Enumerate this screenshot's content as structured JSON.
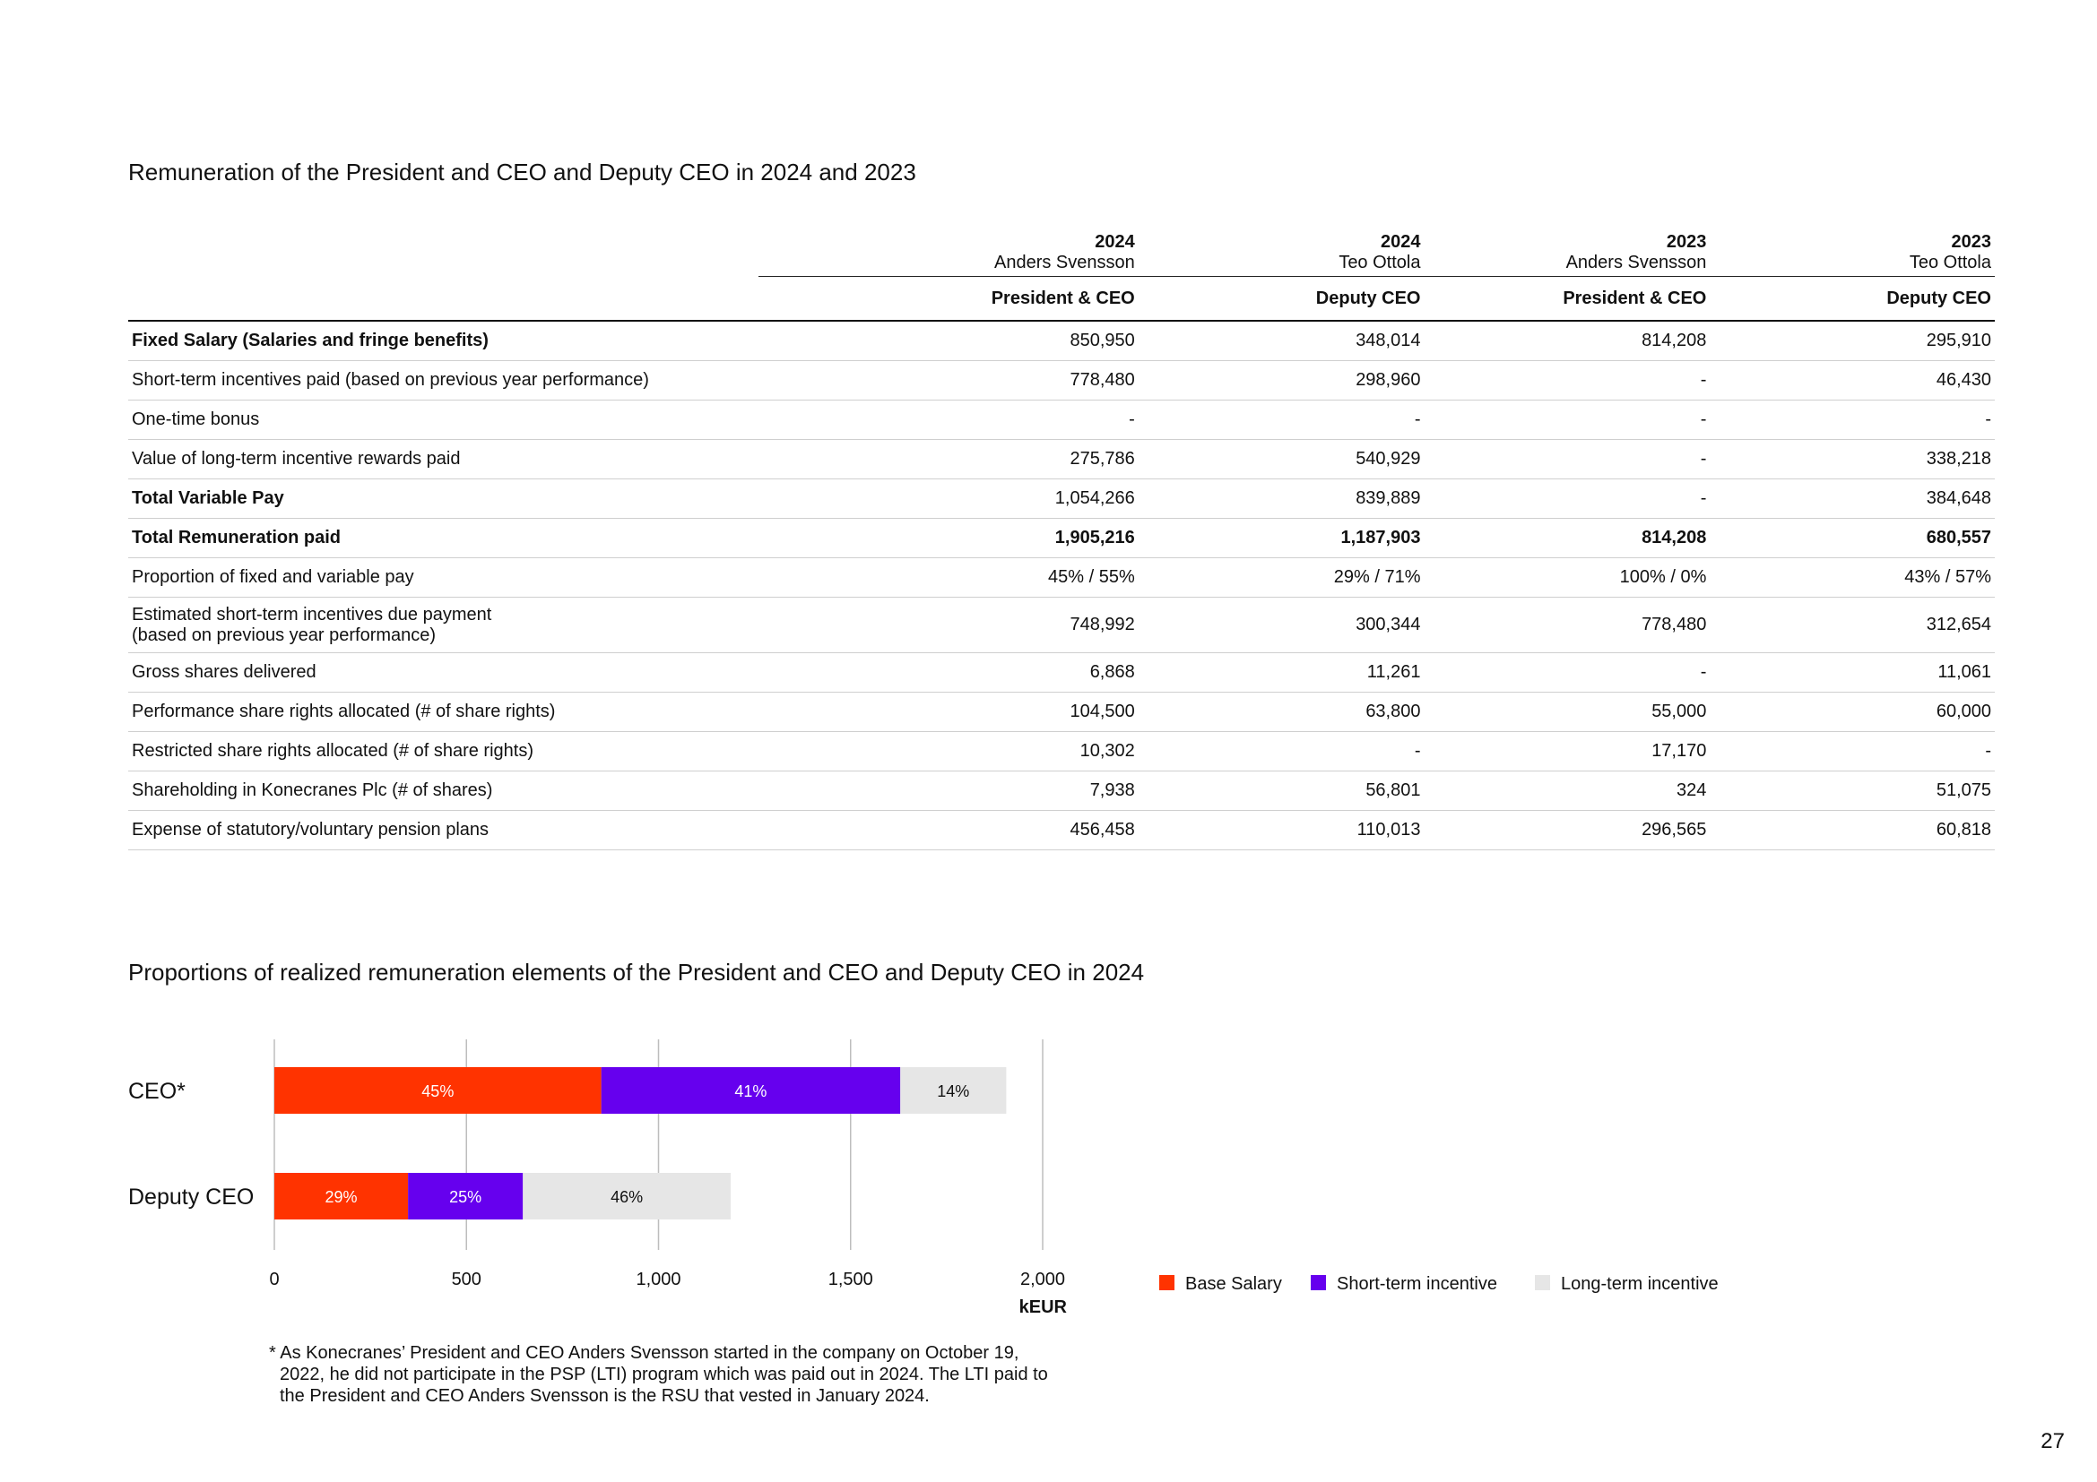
{
  "table_title": "Remuneration of the President and CEO and Deputy CEO in 2024 and 2023",
  "columns": [
    {
      "year": "2024",
      "name": "Anders Svensson",
      "role": "President & CEO"
    },
    {
      "year": "2024",
      "name": "Teo Ottola",
      "role": "Deputy CEO"
    },
    {
      "year": "2023",
      "name": "Anders Svensson",
      "role": "President & CEO"
    },
    {
      "year": "2023",
      "name": "Teo Ottola",
      "role": "Deputy CEO"
    }
  ],
  "rows": [
    {
      "label": "Fixed Salary (Salaries and fringe benefits)",
      "values": [
        "850,950",
        "348,014",
        "814,208",
        "295,910"
      ]
    },
    {
      "label": "Short-term incentives paid (based on previous year performance)",
      "values": [
        "778,480",
        "298,960",
        "-",
        "46,430"
      ]
    },
    {
      "label": "One-time bonus",
      "values": [
        "-",
        "-",
        "-",
        "-"
      ]
    },
    {
      "label": "Value of long-term incentive rewards paid",
      "values": [
        "275,786",
        "540,929",
        "-",
        "338,218"
      ]
    },
    {
      "label": "Total Variable Pay",
      "values": [
        "1,054,266",
        "839,889",
        "-",
        "384,648"
      ]
    },
    {
      "label": "Total Remuneration paid",
      "values": [
        "1,905,216",
        "1,187,903",
        "814,208",
        "680,557"
      ]
    },
    {
      "label": "Proportion of fixed and variable pay",
      "values": [
        "45% / 55%",
        "29% / 71%",
        "100% / 0%",
        "43% / 57%"
      ]
    },
    {
      "label_line1": "Estimated short-term incentives due payment",
      "label_line2": "(based on previous year performance)",
      "values": [
        "748,992",
        "300,344",
        "778,480",
        "312,654"
      ]
    },
    {
      "label": "Gross shares delivered",
      "values": [
        "6,868",
        "11,261",
        "-",
        "11,061"
      ]
    },
    {
      "label": "Performance share rights allocated (# of share rights)",
      "values": [
        "104,500",
        "63,800",
        "55,000",
        "60,000"
      ]
    },
    {
      "label": "Restricted share rights allocated (# of share rights)",
      "values": [
        "10,302",
        "-",
        "17,170",
        "-"
      ]
    },
    {
      "label": "Shareholding in Konecranes Plc (# of shares)",
      "values": [
        "7,938",
        "56,801",
        "324",
        "51,075"
      ]
    },
    {
      "label": "Expense of statutory/voluntary pension plans",
      "values": [
        "456,458",
        "110,013",
        "296,565",
        "60,818"
      ]
    }
  ],
  "chart_title": "Proportions of realized remuneration elements of the President and CEO and Deputy CEO in 2024",
  "chart_data": {
    "type": "bar",
    "orientation": "horizontal",
    "stacked": true,
    "categories": [
      "CEO*",
      "Deputy CEO"
    ],
    "series": [
      {
        "name": "Base Salary",
        "color": "#ff3300",
        "values": [
          850.95,
          348.014
        ],
        "labels": [
          "45%",
          "29%"
        ]
      },
      {
        "name": "Short-term incentive",
        "color": "#6600ee",
        "values": [
          778.48,
          298.96
        ],
        "labels": [
          "41%",
          "25%"
        ]
      },
      {
        "name": "Long-term incentive",
        "color": "#e6e6e6",
        "values": [
          275.786,
          540.929
        ],
        "labels": [
          "14%",
          "46%"
        ]
      }
    ],
    "xlim": [
      0,
      2000
    ],
    "xticks": [
      0,
      500,
      1000,
      1500,
      2000
    ],
    "xtick_labels": [
      "0",
      "500",
      "1,000",
      "1,500",
      "2,000"
    ],
    "xlabel": "kEUR",
    "grid": true,
    "legend_position": "right"
  },
  "footnote": "* As Konecranes’ President and CEO Anders Svensson started in the company on October 19, 2022, he did not participate in the PSP (LTI) program which was paid out in 2024. The LTI paid to the President and CEO Anders Svensson is the RSU that vested in January 2024.",
  "page_number": "27"
}
